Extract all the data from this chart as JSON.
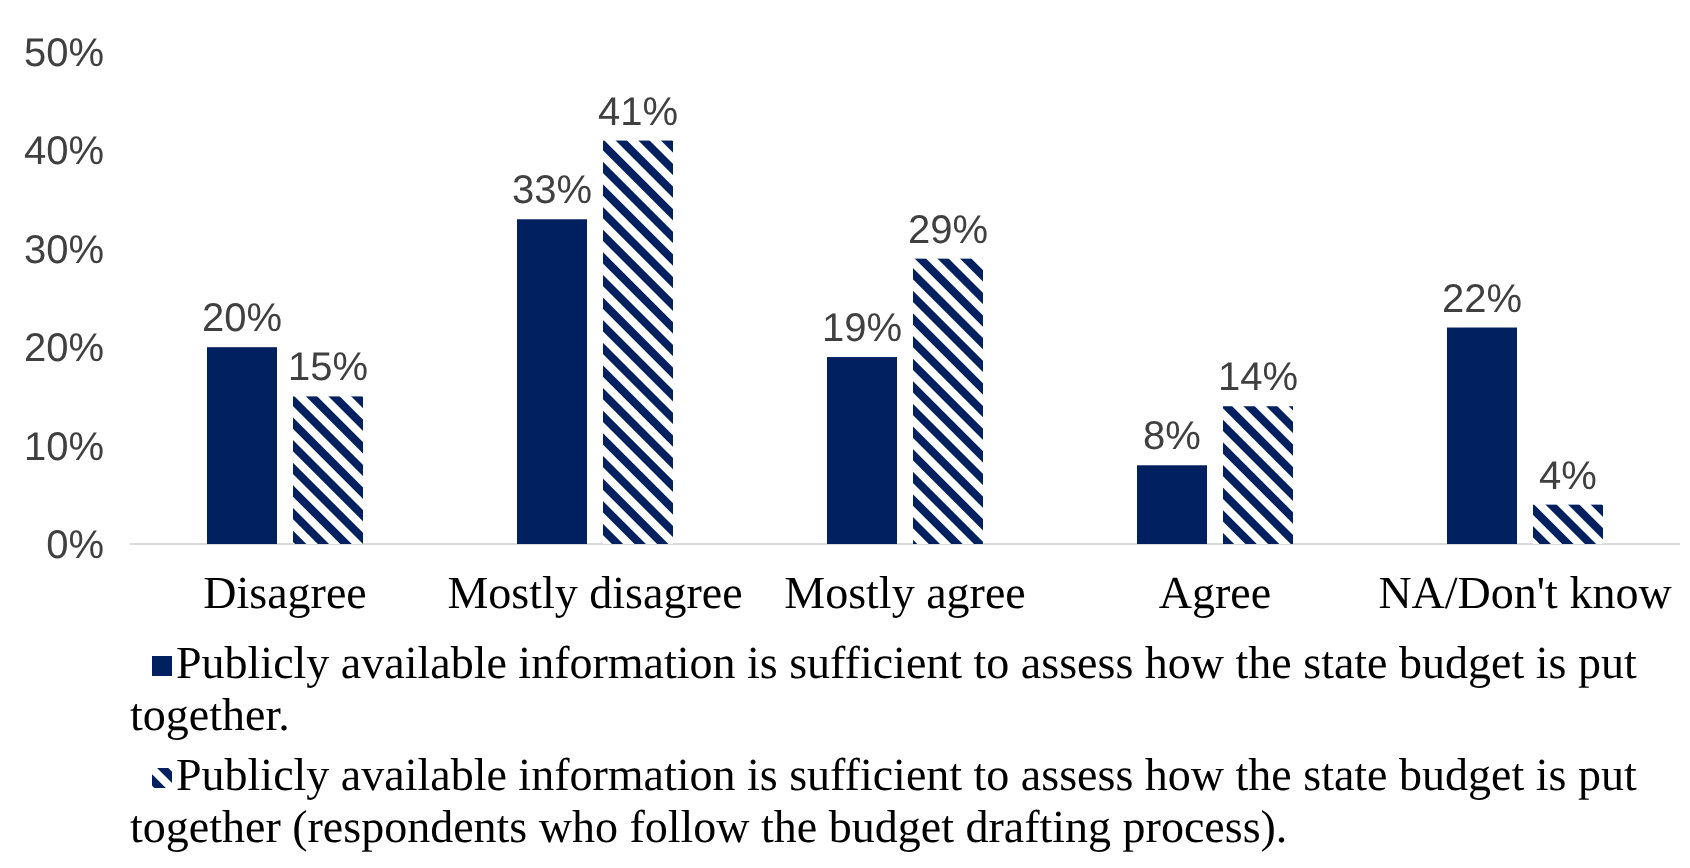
{
  "chart_data": {
    "type": "bar",
    "categories": [
      "Disagree",
      "Mostly disagree",
      "Mostly agree",
      "Agree",
      "NA/Don't know"
    ],
    "series": [
      {
        "name": "Publicly available information is sufficient to assess how the state budget is put together.",
        "color": "#002060",
        "values": [
          20,
          33,
          19,
          8,
          22
        ],
        "value_labels": [
          "20%",
          "33%",
          "19%",
          "8%",
          "22%"
        ]
      },
      {
        "name": "Publicly available information is sufficient to assess how the state budget is put together (respondents who follow the budget drafting process).",
        "color": "#002060",
        "values": [
          15,
          41,
          29,
          14,
          4
        ],
        "value_labels": [
          "15%",
          "41%",
          "29%",
          "14%",
          "4%"
        ]
      }
    ],
    "ylim": [
      0,
      50
    ],
    "yticks": [
      {
        "value": 0,
        "label": "0%"
      },
      {
        "value": 10,
        "label": "10%"
      },
      {
        "value": 20,
        "label": "20%"
      },
      {
        "value": 30,
        "label": "30%"
      },
      {
        "value": 40,
        "label": "40%"
      },
      {
        "value": 50,
        "label": "50%"
      }
    ],
    "grid": false,
    "legend": "bottom"
  }
}
